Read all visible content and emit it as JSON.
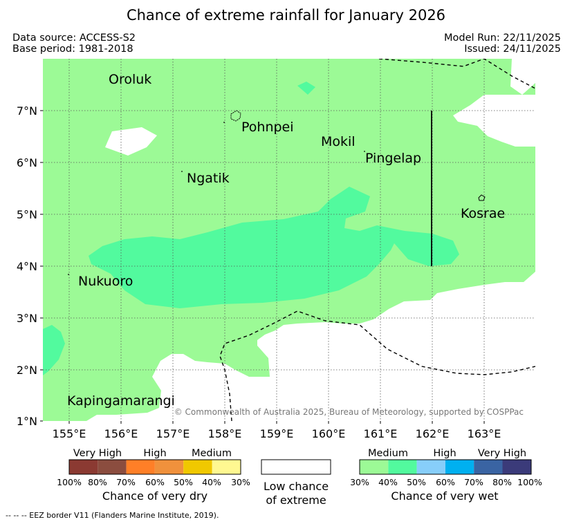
{
  "title": "Chance of extreme rainfall for January 2026",
  "meta": {
    "data_source": "Data source: ACCESS-S2",
    "base_period": "Base period: 1981-2018",
    "model_run": "Model Run: 22/11/2025",
    "issued": "Issued: 24/11/2025"
  },
  "map": {
    "lat_labels": [
      "7°N",
      "6°N",
      "5°N",
      "4°N",
      "3°N",
      "2°N",
      "1°N"
    ],
    "lon_labels": [
      "155°E",
      "156°E",
      "157°E",
      "158°E",
      "159°E",
      "160°E",
      "161°E",
      "162°E",
      "163°E"
    ],
    "places": [
      "Oroluk",
      "Pohnpei",
      "Mokil",
      "Pingelap",
      "Ngatik",
      "Kosrae",
      "Nukuoro",
      "Kapingamarangi"
    ],
    "copyright": "© Commonwealth of Australia 2025, Bureau of Meteorology, supported by COSPPac",
    "colors": {
      "wet_medium": "#9cfa96",
      "wet_high": "#52fa9e",
      "background": "#ffffff"
    }
  },
  "legend": {
    "dry": {
      "categories": [
        "Very High",
        "High",
        "Medium"
      ],
      "percents": [
        "100%",
        "80%",
        "70%",
        "60%",
        "50%",
        "40%",
        "30%"
      ],
      "colors": [
        "#8b3a32",
        "#8b4d3f",
        "#ff7f27",
        "#f0913c",
        "#f0c800",
        "#fff891"
      ],
      "caption": "Chance of very dry"
    },
    "low": {
      "caption_line1": "Low chance",
      "caption_line2": "of extreme"
    },
    "wet": {
      "categories": [
        "Medium",
        "High",
        "Very High"
      ],
      "percents": [
        "30%",
        "40%",
        "50%",
        "60%",
        "70%",
        "80%",
        "100%"
      ],
      "colors": [
        "#9cfa96",
        "#52fa9e",
        "#87cefa",
        "#00b0f0",
        "#3a64a3",
        "#3b3b7a"
      ],
      "caption": "Chance of very wet"
    }
  },
  "eez_note": "--  --  -- EEZ border V11 (Flanders Marine Institute, 2019)."
}
